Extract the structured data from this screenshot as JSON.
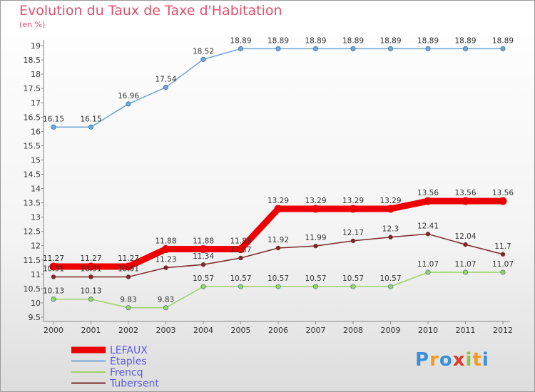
{
  "title": "Evolution du Taux de Taxe d'Habitation",
  "unit": "(en %)",
  "logo": {
    "letters": [
      "P",
      "r",
      "o",
      "x",
      "i",
      "t",
      "i"
    ],
    "colors": [
      "#3a8fd8",
      "#f29a1e",
      "#3a8fd8",
      "#e03a30",
      "#8dc63f",
      "#f29a1e",
      "#3a8fd8"
    ]
  },
  "chart_data": {
    "type": "line",
    "title": "Evolution du Taux de Taxe d'Habitation",
    "ylabel": "(en %)",
    "xlabel": "",
    "x": [
      "2000",
      "2001",
      "2002",
      "2003",
      "2004",
      "2005",
      "2006",
      "2007",
      "2008",
      "2009",
      "2010",
      "2011",
      "2012"
    ],
    "ylim": [
      9.5,
      19
    ],
    "yticks": [
      "9.5",
      "10",
      "10.5",
      "11",
      "11.5",
      "12",
      "12.5",
      "13",
      "13.5",
      "14",
      "14.5",
      "15",
      "15.5",
      "16",
      "16.5",
      "17",
      "17.5",
      "18",
      "18.5",
      "19"
    ],
    "grid": false,
    "legend": "bottom-left",
    "series": [
      {
        "name": "LEFAUX",
        "color": "#ee0000",
        "width": 9,
        "values": [
          11.27,
          11.27,
          11.27,
          11.88,
          11.88,
          11.88,
          13.29,
          13.29,
          13.29,
          13.29,
          13.56,
          13.56,
          13.56
        ],
        "labels": [
          "11.27",
          "11.27",
          "11.27",
          "11.88",
          "11.88",
          "11.88",
          "13.29",
          "13.29",
          "13.29",
          "13.29",
          "13.56",
          "13.56",
          "13.56"
        ]
      },
      {
        "name": "Étaples",
        "color": "#6ea6d8",
        "width": 1.5,
        "values": [
          16.15,
          16.15,
          16.96,
          17.54,
          18.52,
          18.89,
          18.89,
          18.89,
          18.89,
          18.89,
          18.89,
          18.89,
          18.89
        ],
        "labels": [
          "16.15",
          "16.15",
          "16.96",
          "17.54",
          "18.52",
          "18.89",
          "18.89",
          "18.89",
          "18.89",
          "18.89",
          "18.89",
          "18.89",
          "18.89"
        ]
      },
      {
        "name": "Frencq",
        "color": "#9ad468",
        "width": 1.5,
        "values": [
          10.13,
          10.13,
          9.83,
          9.83,
          10.57,
          10.57,
          10.57,
          10.57,
          10.57,
          10.57,
          11.07,
          11.07,
          11.07
        ],
        "labels": [
          "10.13",
          "10.13",
          "9.83",
          "9.83",
          "10.57",
          "10.57",
          "10.57",
          "10.57",
          "10.57",
          "10.57",
          "11.07",
          "11.07",
          "11.07"
        ]
      },
      {
        "name": "Tubersent",
        "color": "#7a2a2a",
        "width": 1.5,
        "values": [
          10.91,
          10.91,
          10.91,
          11.23,
          11.34,
          11.57,
          11.92,
          11.99,
          12.17,
          12.3,
          12.41,
          12.04,
          11.7
        ],
        "labels": [
          "10.91",
          "10.91",
          "10.91",
          "11.23",
          "11.34",
          "11.57",
          "11.92",
          "11.99",
          "12.17",
          "12.3",
          "12.41",
          "12.04",
          "11.7"
        ]
      }
    ]
  }
}
